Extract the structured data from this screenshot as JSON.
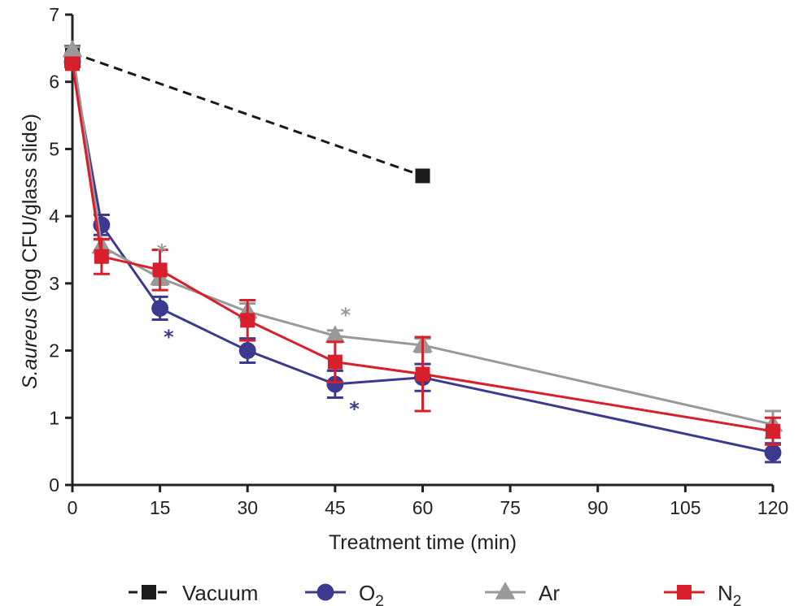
{
  "chart_data": {
    "type": "line",
    "title": "",
    "xlabel": "Treatment time (min)",
    "ylabel_italic": "S.aureus",
    "ylabel_rest": " (log CFU/glass slide)",
    "xlim": [
      0,
      120
    ],
    "ylim": [
      0,
      7
    ],
    "xticks": [
      "0",
      "15",
      "30",
      "45",
      "60",
      "75",
      "90",
      "105",
      "120"
    ],
    "yticks": [
      "0",
      "1",
      "2",
      "3",
      "4",
      "5",
      "6",
      "7"
    ],
    "grid": false,
    "legend_position": "bottom",
    "series": [
      {
        "name": "Vacuum",
        "sub": "",
        "color": "#1a1a1a",
        "marker": "square",
        "dashed": true,
        "x": [
          0,
          60
        ],
        "y": [
          6.43,
          4.6
        ],
        "err": [
          0.1,
          0
        ]
      },
      {
        "name": "O",
        "sub": "2",
        "color": "#3b3a8f",
        "marker": "circle",
        "dashed": false,
        "x": [
          0,
          5,
          15,
          30,
          45,
          60,
          120
        ],
        "y": [
          6.3,
          3.87,
          2.63,
          2.0,
          1.5,
          1.6,
          0.48
        ],
        "err": [
          0.05,
          0.15,
          0.17,
          0.18,
          0.2,
          0.2,
          0.14
        ]
      },
      {
        "name": "Ar",
        "sub": "",
        "color": "#999999",
        "marker": "triangle",
        "dashed": false,
        "x": [
          0,
          5,
          15,
          30,
          45,
          60,
          120
        ],
        "y": [
          6.47,
          3.55,
          3.08,
          2.58,
          2.22,
          2.08,
          0.9
        ],
        "err": [
          0.05,
          0.1,
          0.1,
          0.12,
          0.08,
          0.1,
          0.2
        ]
      },
      {
        "name": "N",
        "sub": "2",
        "color": "#d7202c",
        "marker": "square",
        "dashed": false,
        "x": [
          0,
          5,
          15,
          30,
          45,
          60,
          120
        ],
        "y": [
          6.27,
          3.4,
          3.2,
          2.45,
          1.83,
          1.65,
          0.8
        ],
        "err": [
          0.05,
          0.26,
          0.3,
          0.3,
          0.3,
          0.55,
          0.2
        ]
      }
    ],
    "annotations": [
      {
        "text": "*",
        "x": 15.3,
        "y": 3.55,
        "color": "#999999"
      },
      {
        "text": "*",
        "x": 16.5,
        "y": 2.27,
        "color": "#3b3a8f"
      },
      {
        "text": "*",
        "x": 46.8,
        "y": 2.6,
        "color": "#999999"
      },
      {
        "text": "*",
        "x": 48.3,
        "y": 1.2,
        "color": "#3b3a8f"
      }
    ]
  }
}
